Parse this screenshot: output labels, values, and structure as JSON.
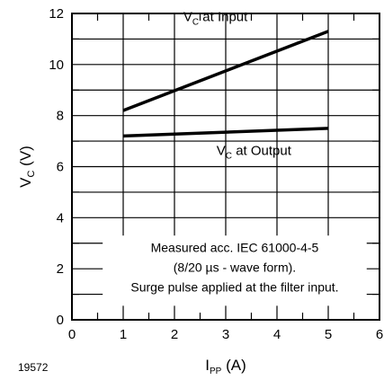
{
  "figure_id": "19572",
  "chart_data": {
    "type": "line",
    "xlabel": {
      "main": "I",
      "sub": "PP",
      "unit": " (A)"
    },
    "ylabel": {
      "main": "V",
      "sub": "C",
      "unit": " (V)"
    },
    "xlim": [
      0,
      6
    ],
    "ylim": [
      0,
      12
    ],
    "x_ticks": [
      0,
      1,
      2,
      3,
      4,
      5,
      6
    ],
    "y_ticks": [
      0,
      2,
      4,
      6,
      8,
      10,
      12
    ],
    "x_minor_step": 0.5,
    "y_minor_step": 1,
    "grid": true,
    "series": [
      {
        "name": {
          "main": "V",
          "sub": "C",
          "rest": " at Input"
        },
        "x": [
          1,
          5
        ],
        "y": [
          8.2,
          11.3
        ],
        "color": "#000000"
      },
      {
        "name": {
          "main": "V",
          "sub": "C",
          "rest": " at Output"
        },
        "x": [
          1,
          5
        ],
        "y": [
          7.2,
          7.5
        ],
        "color": "#000000"
      }
    ],
    "annotation": [
      "Measured acc. IEC 61000-4-5",
      "(8/20 µs - wave form).",
      "Surge pulse applied at the filter input."
    ]
  }
}
